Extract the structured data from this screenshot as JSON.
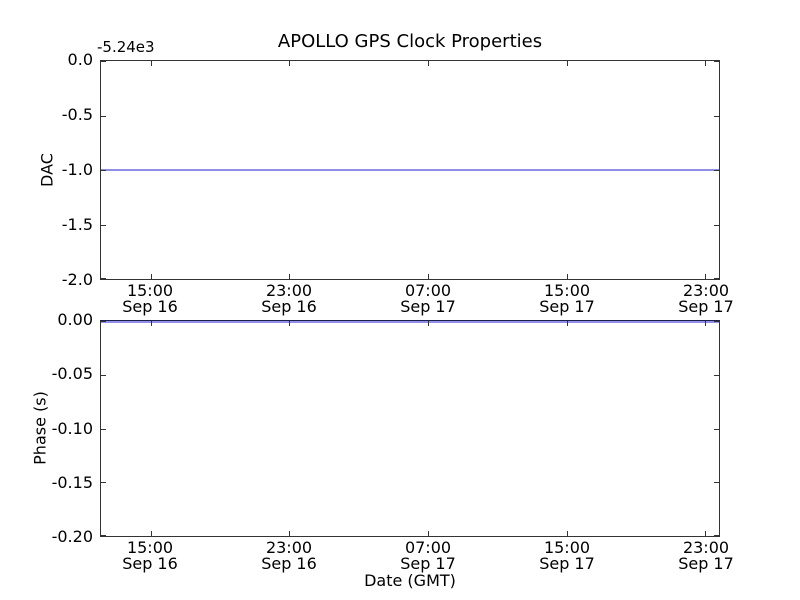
{
  "figure": {
    "title": "APOLLO GPS Clock Properties",
    "xlabel": "Date (GMT)",
    "background_color": "#ffffff",
    "axis_color": "#333333",
    "line_color": "#8f8fe8"
  },
  "chart_data": [
    {
      "type": "line",
      "subplot": "top",
      "title": "APOLLO GPS Clock Properties",
      "ylabel": "DAC",
      "y_axis_offset_text": "-5.24e3",
      "ylim": [
        -2.0,
        0.0
      ],
      "y_tick_labels": [
        "0.0",
        "-0.5",
        "-1.0",
        "-1.5",
        "-2.0"
      ],
      "x_tick_labels_time": [
        "15:00",
        "23:00",
        "07:00",
        "15:00",
        "23:00"
      ],
      "x_tick_labels_date": [
        "Sep 16",
        "Sep 16",
        "Sep 17",
        "Sep 17",
        "Sep 17"
      ],
      "grid": false,
      "legend": false,
      "series": [
        {
          "name": "DAC",
          "color": "#8f8fe8",
          "style": "flat horizontal line spanning full x-range",
          "y_value": -1.0
        }
      ]
    },
    {
      "type": "line",
      "subplot": "bottom",
      "ylabel": "Phase (s)",
      "xlabel": "Date (GMT)",
      "ylim": [
        -0.2,
        0.0
      ],
      "y_tick_labels": [
        "0.00",
        "-0.05",
        "-0.10",
        "-0.15",
        "-0.20"
      ],
      "x_tick_labels_time": [
        "15:00",
        "23:00",
        "07:00",
        "15:00",
        "23:00"
      ],
      "x_tick_labels_date": [
        "Sep 16",
        "Sep 16",
        "Sep 17",
        "Sep 17",
        "Sep 17"
      ],
      "grid": false,
      "legend": false,
      "series": [
        {
          "name": "Phase",
          "color": "#8f8fe8",
          "style": "flat horizontal line spanning full x-range",
          "y_value": 0.0
        }
      ]
    }
  ]
}
